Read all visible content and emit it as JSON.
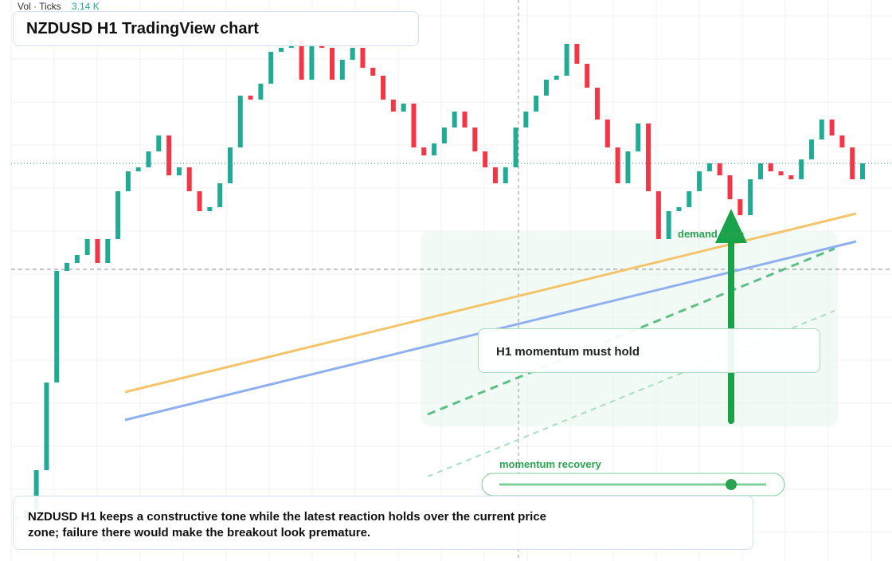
{
  "header": {
    "vol_label": "Vol · Ticks",
    "vol_value": "3.14 K",
    "title": "NZDUSD H1 TradingView chart"
  },
  "annotations": {
    "zone": "demand zone",
    "callout": "H1 momentum must hold",
    "slider": "momentum recovery"
  },
  "footer": {
    "text": "NZDUSD H1 keeps a constructive tone while the latest reaction holds over the current price zone; failure there would make the breakout look premature."
  },
  "chart_data": {
    "type": "candlestick",
    "up_color": "#22ab94",
    "down_color": "#f23645",
    "ylim": [
      0,
      704
    ],
    "values": [
      54,
      64,
      114,
      224,
      364,
      374,
      384,
      404,
      374,
      404,
      464,
      489,
      494,
      514,
      534,
      484,
      494,
      464,
      439,
      444,
      474,
      519,
      584,
      579,
      599,
      639,
      644,
      654,
      604,
      649,
      644,
      604,
      629,
      644,
      619,
      609,
      579,
      564,
      574,
      519,
      509,
      524,
      544,
      564,
      544,
      514,
      494,
      474,
      494,
      544,
      564,
      584,
      604,
      609,
      649,
      624,
      594,
      554,
      519,
      474,
      514,
      549,
      464,
      404,
      439,
      444,
      464,
      489,
      499,
      484,
      454,
      434,
      479,
      499,
      489,
      484,
      479,
      504,
      529,
      554,
      534,
      519,
      479,
      499
    ]
  }
}
